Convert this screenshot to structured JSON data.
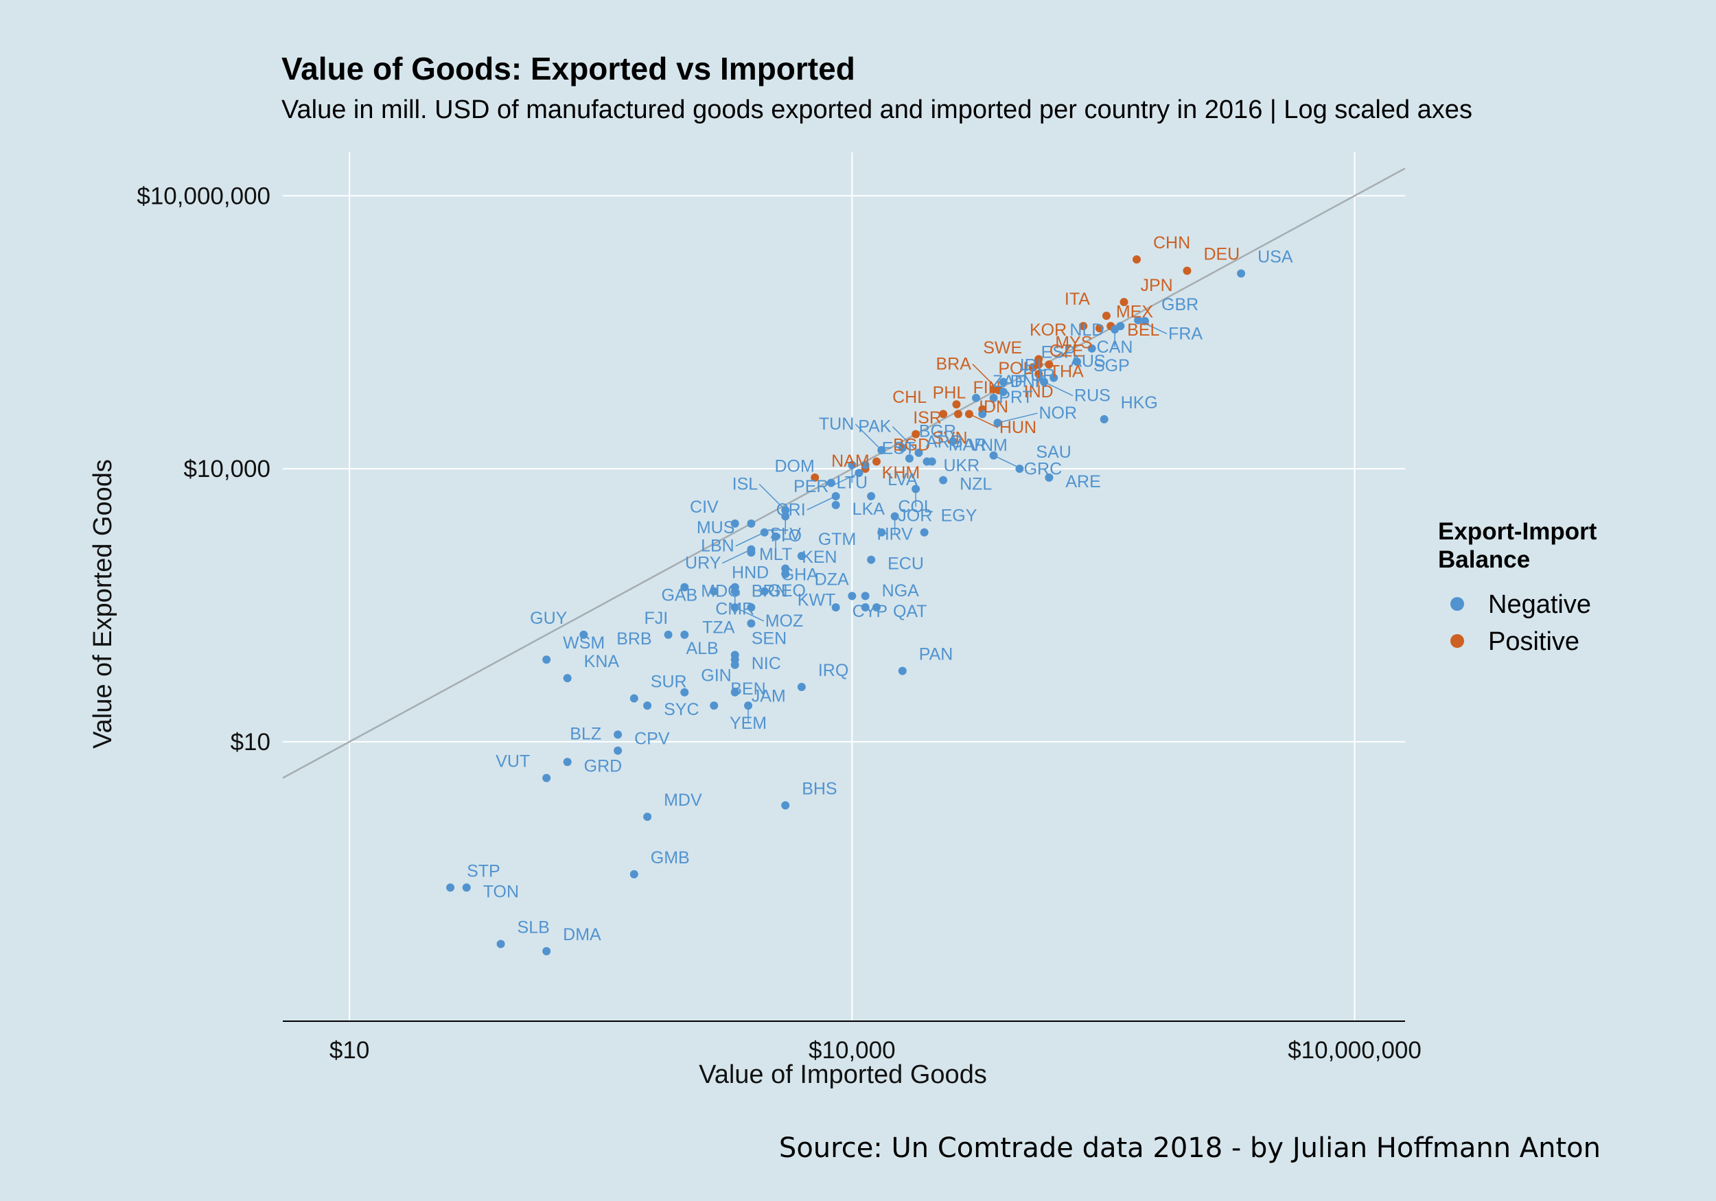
{
  "chart_data": {
    "type": "scatter",
    "title": "Value of Goods: Exported vs Imported",
    "subtitle": "Value in mill. USD of manufactured goods exported and imported per country in 2016 | Log scaled axes",
    "xlabel": "Value of Imported Goods",
    "ylabel": "Value of Exported Goods",
    "x_scale": "log10",
    "y_scale": "log10",
    "xlim": [
      4,
      20000000
    ],
    "ylim": [
      0.0085,
      30000000
    ],
    "x_ticks": [
      {
        "value": 10,
        "label": "$10"
      },
      {
        "value": 10000,
        "label": "$10,000"
      },
      {
        "value": 10000000,
        "label": "$10,000,000"
      }
    ],
    "y_ticks": [
      {
        "value": 10,
        "label": "$10"
      },
      {
        "value": 10000,
        "label": "$10,000"
      },
      {
        "value": 10000000,
        "label": "$10,000,000"
      }
    ],
    "reference_line": "y = x",
    "grid": true,
    "legend": {
      "title": "Export-Import Balance",
      "title_lines": [
        "Export-Import",
        "Balance"
      ],
      "position": "right",
      "entries": [
        {
          "name": "Negative",
          "color": "#5193cf"
        },
        {
          "name": "Positive",
          "color": "#cc6123"
        }
      ]
    },
    "source": "Source: Un Comtrade data 2018 - by Julian Hoffmann Anton",
    "points": [
      {
        "label": "USA",
        "x": 2100000,
        "y": 1400000,
        "balance": "Negative"
      },
      {
        "label": "DEU",
        "x": 1000000,
        "y": 1500000,
        "balance": "Positive"
      },
      {
        "label": "CHN",
        "x": 500000,
        "y": 2000000,
        "balance": "Positive"
      },
      {
        "label": "JPN",
        "x": 420000,
        "y": 680000,
        "balance": "Positive"
      },
      {
        "label": "MEX",
        "x": 300000,
        "y": 350000,
        "balance": "Positive"
      },
      {
        "label": "BEL",
        "x": 350000,
        "y": 370000,
        "balance": "Positive"
      },
      {
        "label": "ITA",
        "x": 330000,
        "y": 480000,
        "balance": "Positive"
      },
      {
        "label": "KOR",
        "x": 240000,
        "y": 370000,
        "balance": "Positive"
      },
      {
        "label": "GBR",
        "x": 560000,
        "y": 420000,
        "balance": "Negative"
      },
      {
        "label": "FRA",
        "x": 510000,
        "y": 430000,
        "balance": "Negative"
      },
      {
        "label": "CAN",
        "x": 370000,
        "y": 340000,
        "balance": "Negative"
      },
      {
        "label": "NLD",
        "x": 400000,
        "y": 370000,
        "balance": "Negative"
      },
      {
        "label": "ESP",
        "x": 270000,
        "y": 210000,
        "balance": "Negative"
      },
      {
        "label": "SGP",
        "x": 220000,
        "y": 150000,
        "balance": "Negative"
      },
      {
        "label": "SWE",
        "x": 130000,
        "y": 140000,
        "balance": "Positive"
      },
      {
        "label": "FIN",
        "x": 42000,
        "y": 51000,
        "balance": "Positive"
      },
      {
        "label": "THA",
        "x": 120000,
        "y": 130000,
        "balance": "Positive"
      },
      {
        "label": "MYS",
        "x": 130000,
        "y": 160000,
        "balance": "Positive"
      },
      {
        "label": "POL",
        "x": 150000,
        "y": 140000,
        "balance": "Positive"
      },
      {
        "label": "IND",
        "x": 130000,
        "y": 110000,
        "balance": "Positive"
      },
      {
        "label": "CZE",
        "x": 120000,
        "y": 130000,
        "balance": "Positive"
      },
      {
        "label": "IDN",
        "x": 70000,
        "y": 75000,
        "balance": "Positive"
      },
      {
        "label": "BRA",
        "x": 75000,
        "y": 73000,
        "balance": "Positive"
      },
      {
        "label": "PHL",
        "x": 60000,
        "y": 45000,
        "balance": "Positive"
      },
      {
        "label": "ISR",
        "x": 43000,
        "y": 40000,
        "balance": "Positive"
      },
      {
        "label": "CHL",
        "x": 35000,
        "y": 40000,
        "balance": "Positive"
      },
      {
        "label": "SVN",
        "x": 24000,
        "y": 24000,
        "balance": "Positive"
      },
      {
        "label": "HUN",
        "x": 50000,
        "y": 40000,
        "balance": "Positive"
      },
      {
        "label": "BGD",
        "x": 14000,
        "y": 12000,
        "balance": "Positive"
      },
      {
        "label": "KHM",
        "x": 12000,
        "y": 10000,
        "balance": "Positive"
      },
      {
        "label": "NAM",
        "x": 6000,
        "y": 8000,
        "balance": "Positive"
      },
      {
        "label": "TUR",
        "x": 80000,
        "y": 70000,
        "balance": "Negative"
      },
      {
        "label": "RUS",
        "x": 140000,
        "y": 90000,
        "balance": "Negative"
      },
      {
        "label": "DNK",
        "x": 70000,
        "y": 60000,
        "balance": "Negative"
      },
      {
        "label": "AUS",
        "x": 160000,
        "y": 100000,
        "balance": "Negative"
      },
      {
        "label": "IRL",
        "x": 80000,
        "y": 90000,
        "balance": "Negative"
      },
      {
        "label": "ZAF",
        "x": 55000,
        "y": 60000,
        "balance": "Negative"
      },
      {
        "label": "PRT",
        "x": 60000,
        "y": 40000,
        "balance": "Negative"
      },
      {
        "label": "HKG",
        "x": 320000,
        "y": 35000,
        "balance": "Negative"
      },
      {
        "label": "NOR",
        "x": 74000,
        "y": 32000,
        "balance": "Negative"
      },
      {
        "label": "VNM",
        "x": 40000,
        "y": 20000,
        "balance": "Negative"
      },
      {
        "label": "UKR",
        "x": 28000,
        "y": 12000,
        "balance": "Negative"
      },
      {
        "label": "SAU",
        "x": 100000,
        "y": 10000,
        "balance": "Negative"
      },
      {
        "label": "ARE",
        "x": 150000,
        "y": 8000,
        "balance": "Negative"
      },
      {
        "label": "NZL",
        "x": 35000,
        "y": 7500,
        "balance": "Negative"
      },
      {
        "label": "GRC",
        "x": 70000,
        "y": 14000,
        "balance": "Negative"
      },
      {
        "label": "MAR",
        "x": 30000,
        "y": 12000,
        "balance": "Negative"
      },
      {
        "label": "PAK",
        "x": 25000,
        "y": 15000,
        "balance": "Negative"
      },
      {
        "label": "ARG",
        "x": 22000,
        "y": 13000,
        "balance": "Negative"
      },
      {
        "label": "TUN",
        "x": 15000,
        "y": 16000,
        "balance": "Negative"
      },
      {
        "label": "BGR",
        "x": 20000,
        "y": 17000,
        "balance": "Negative"
      },
      {
        "label": "LTU",
        "x": 10000,
        "y": 11000,
        "balance": "Negative"
      },
      {
        "label": "LKA",
        "x": 8000,
        "y": 4000,
        "balance": "Negative"
      },
      {
        "label": "DOM",
        "x": 7500,
        "y": 7000,
        "balance": "Negative"
      },
      {
        "label": "PER",
        "x": 11000,
        "y": 9000,
        "balance": "Negative"
      },
      {
        "label": "COL",
        "x": 24000,
        "y": 6000,
        "balance": "Negative"
      },
      {
        "label": "CRI",
        "x": 8000,
        "y": 5000,
        "balance": "Negative"
      },
      {
        "label": "SLV",
        "x": 4000,
        "y": 3000,
        "balance": "Negative"
      },
      {
        "label": "EST",
        "x": 12000,
        "y": 11000,
        "balance": "Negative"
      },
      {
        "label": "EGY",
        "x": 27000,
        "y": 2000,
        "balance": "Negative"
      },
      {
        "label": "HRV",
        "x": 18000,
        "y": 3000,
        "balance": "Negative"
      },
      {
        "label": "LVA",
        "x": 13000,
        "y": 5000,
        "balance": "Negative"
      },
      {
        "label": "ISL",
        "x": 4000,
        "y": 3500,
        "balance": "Negative"
      },
      {
        "label": "CIV",
        "x": 2000,
        "y": 2500,
        "balance": "Negative"
      },
      {
        "label": "MUS",
        "x": 2500,
        "y": 2500,
        "balance": "Negative"
      },
      {
        "label": "LBN",
        "x": 3000,
        "y": 2000,
        "balance": "Negative"
      },
      {
        "label": "MLT",
        "x": 3500,
        "y": 1800,
        "balance": "Negative"
      },
      {
        "label": "URY",
        "x": 2500,
        "y": 1300,
        "balance": "Negative"
      },
      {
        "label": "TTO",
        "x": 2500,
        "y": 1200,
        "balance": "Negative"
      },
      {
        "label": "KEN",
        "x": 4000,
        "y": 700,
        "balance": "Negative"
      },
      {
        "label": "HND",
        "x": 4000,
        "y": 800,
        "balance": "Negative"
      },
      {
        "label": "GTM",
        "x": 5000,
        "y": 1100,
        "balance": "Negative"
      },
      {
        "label": "ECU",
        "x": 13000,
        "y": 1000,
        "balance": "Negative"
      },
      {
        "label": "JOR",
        "x": 15000,
        "y": 2000,
        "balance": "Negative"
      },
      {
        "label": "NGA",
        "x": 12000,
        "y": 300,
        "balance": "Negative"
      },
      {
        "label": "DZA",
        "x": 12000,
        "y": 400,
        "balance": "Negative"
      },
      {
        "label": "KWT",
        "x": 10000,
        "y": 400,
        "balance": "Negative"
      },
      {
        "label": "CYP",
        "x": 8000,
        "y": 300,
        "balance": "Negative"
      },
      {
        "label": "QAT",
        "x": 14000,
        "y": 300,
        "balance": "Negative"
      },
      {
        "label": "PAN",
        "x": 20000,
        "y": 60,
        "balance": "Negative"
      },
      {
        "label": "MDG",
        "x": 1000,
        "y": 500,
        "balance": "Negative"
      },
      {
        "label": "BRN",
        "x": 2000,
        "y": 500,
        "balance": "Negative"
      },
      {
        "label": "CMR",
        "x": 2000,
        "y": 450,
        "balance": "Negative"
      },
      {
        "label": "GAB",
        "x": 1500,
        "y": 450,
        "balance": "Negative"
      },
      {
        "label": "MOZ",
        "x": 2000,
        "y": 300,
        "balance": "Negative"
      },
      {
        "label": "GHA",
        "x": 3000,
        "y": 450,
        "balance": "Negative"
      },
      {
        "label": "GEO",
        "x": 2500,
        "y": 300,
        "balance": "Negative"
      },
      {
        "label": "TZA",
        "x": 2500,
        "y": 200,
        "balance": "Negative"
      },
      {
        "label": "IRQ",
        "x": 5000,
        "y": 40,
        "balance": "Negative"
      },
      {
        "label": "FJI",
        "x": 1000,
        "y": 150,
        "balance": "Negative"
      },
      {
        "label": "BRB",
        "x": 800,
        "y": 150,
        "balance": "Negative"
      },
      {
        "label": "SEN",
        "x": 2000,
        "y": 90,
        "balance": "Negative"
      },
      {
        "label": "NIC",
        "x": 2000,
        "y": 80,
        "balance": "Negative"
      },
      {
        "label": "ALB",
        "x": 2000,
        "y": 70,
        "balance": "Negative"
      },
      {
        "label": "WSM",
        "x": 150,
        "y": 80,
        "balance": "Negative"
      },
      {
        "label": "GUY",
        "x": 250,
        "y": 150,
        "balance": "Negative"
      },
      {
        "label": "KNA",
        "x": 200,
        "y": 50,
        "balance": "Negative"
      },
      {
        "label": "SUR",
        "x": 500,
        "y": 30,
        "balance": "Negative"
      },
      {
        "label": "GIN",
        "x": 1000,
        "y": 35,
        "balance": "Negative"
      },
      {
        "label": "JAM",
        "x": 2000,
        "y": 35,
        "balance": "Negative"
      },
      {
        "label": "SYC",
        "x": 600,
        "y": 25,
        "balance": "Negative"
      },
      {
        "label": "YEM",
        "x": 2400,
        "y": 25,
        "balance": "Negative"
      },
      {
        "label": "BEN",
        "x": 1500,
        "y": 25,
        "balance": "Negative"
      },
      {
        "label": "CPV",
        "x": 400,
        "y": 12,
        "balance": "Negative"
      },
      {
        "label": "BLZ",
        "x": 400,
        "y": 8,
        "balance": "Negative"
      },
      {
        "label": "GRD",
        "x": 200,
        "y": 6,
        "balance": "Negative"
      },
      {
        "label": "VUT",
        "x": 150,
        "y": 4,
        "balance": "Negative"
      },
      {
        "label": "BHS",
        "x": 4000,
        "y": 2,
        "balance": "Negative"
      },
      {
        "label": "MDV",
        "x": 600,
        "y": 1.5,
        "balance": "Negative"
      },
      {
        "label": "GMB",
        "x": 500,
        "y": 0.35,
        "balance": "Negative"
      },
      {
        "label": "STP",
        "x": 40,
        "y": 0.25,
        "balance": "Negative"
      },
      {
        "label": "TON",
        "x": 50,
        "y": 0.25,
        "balance": "Negative"
      },
      {
        "label": "SLB",
        "x": 80,
        "y": 0.06,
        "balance": "Negative"
      },
      {
        "label": "DMA",
        "x": 150,
        "y": 0.05,
        "balance": "Negative"
      }
    ]
  }
}
